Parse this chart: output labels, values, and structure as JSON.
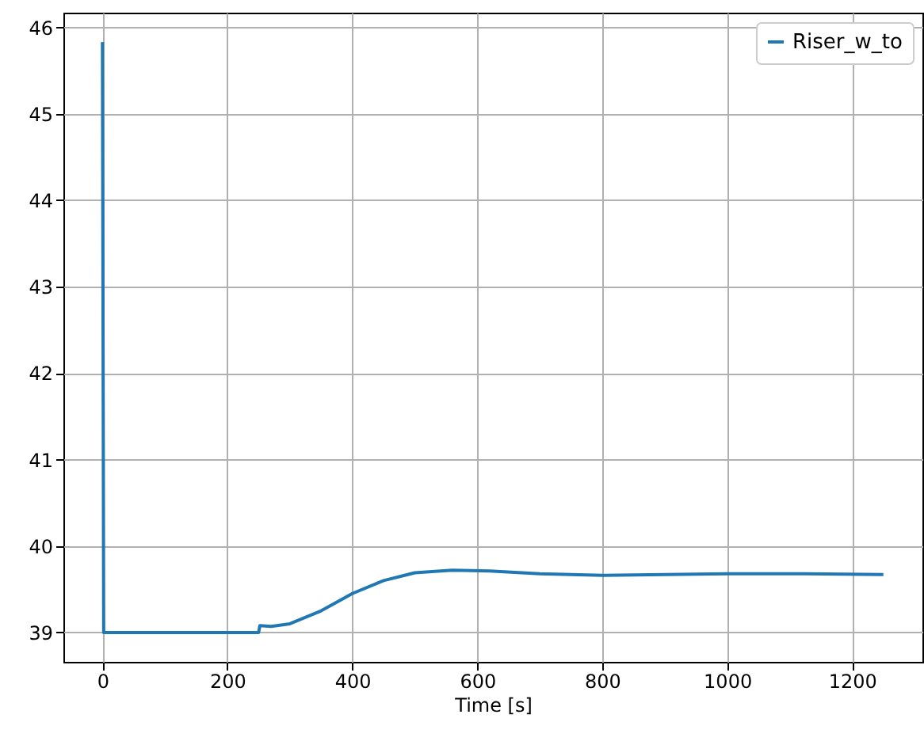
{
  "chart_data": {
    "type": "line",
    "xlabel": "Time [s]",
    "xlim": [
      -62.5,
      1312.5
    ],
    "ylim": [
      38.66,
      46.17
    ],
    "xticks": [
      0,
      200,
      400,
      600,
      800,
      1000,
      1200
    ],
    "yticks": [
      39,
      40,
      41,
      42,
      43,
      44,
      45,
      46
    ],
    "grid": true,
    "legend": "top right",
    "series": [
      {
        "name": "Riser_w_to",
        "color": "#1f77b4",
        "x": [
          0,
          2,
          250,
          252,
          270,
          300,
          350,
          400,
          450,
          500,
          560,
          620,
          700,
          800,
          900,
          1000,
          1100,
          1250
        ],
        "values": [
          45.83,
          39.0,
          39.0,
          39.08,
          39.07,
          39.1,
          39.25,
          39.45,
          39.6,
          39.69,
          39.72,
          39.71,
          39.68,
          39.66,
          39.67,
          39.68,
          39.68,
          39.67
        ]
      }
    ]
  }
}
